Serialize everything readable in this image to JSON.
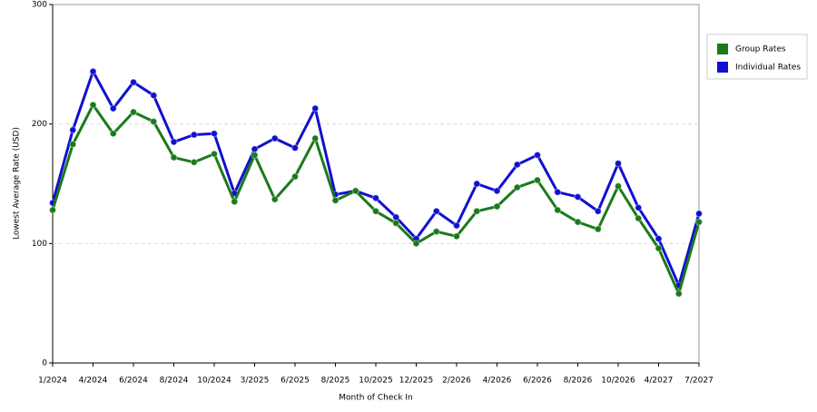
{
  "chart_data": {
    "type": "line",
    "x_label": "Month of Check In",
    "y_label": "Lowest Average Rate (USD)",
    "categories": [
      "1/2024",
      null,
      "4/2024",
      null,
      "6/2024",
      null,
      "8/2024",
      null,
      "10/2024",
      null,
      "3/2025",
      null,
      "6/2025",
      null,
      "8/2025",
      null,
      "10/2025",
      null,
      "12/2025",
      null,
      "2/2026",
      null,
      "4/2026",
      null,
      "6/2026",
      null,
      "8/2026",
      null,
      "10/2026",
      null,
      "4/2027",
      null,
      "7/2027"
    ],
    "series": [
      {
        "name": "Group Rates",
        "color": "#1a7a1a",
        "values": [
          128,
          183,
          216,
          192,
          210,
          202,
          172,
          168,
          175,
          135,
          174,
          137,
          156,
          188,
          136,
          144,
          127,
          117,
          100,
          110,
          106,
          127,
          131,
          147,
          153,
          128,
          118,
          112,
          148,
          121,
          96,
          58,
          118
        ]
      },
      {
        "name": "Individual Rates",
        "color": "#1010d0",
        "values": [
          134,
          195,
          244,
          213,
          235,
          224,
          185,
          191,
          192,
          142,
          179,
          188,
          180,
          213,
          141,
          144,
          138,
          122,
          104,
          127,
          115,
          150,
          144,
          166,
          174,
          143,
          139,
          127,
          167,
          130,
          104,
          65,
          125
        ]
      }
    ],
    "ylim": [
      0,
      300
    ],
    "yticks": [
      0,
      100,
      200,
      300
    ],
    "grid": true,
    "legend": "right"
  }
}
